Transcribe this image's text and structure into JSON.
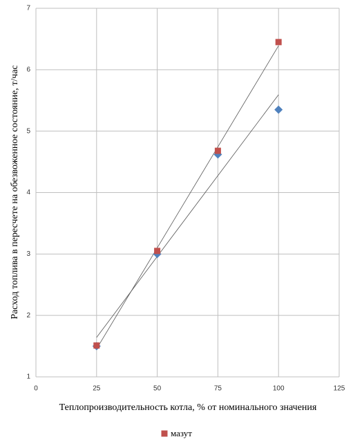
{
  "chart_data": {
    "type": "scatter",
    "xlabel": "Теплопроизводительность котла, % от номинального значения",
    "ylabel": "Расход топлива в пересчете  на обезвоженное состояние, т/час",
    "x": [
      25,
      50,
      75,
      100
    ],
    "series": [
      {
        "color": "#4f81bd",
        "marker": "diamond",
        "trendline": true,
        "values": [
          1.5,
          3.0,
          4.62,
          5.35
        ]
      },
      {
        "name": "мазут",
        "color": "#c0504d",
        "marker": "square",
        "trendline": true,
        "values": [
          1.51,
          3.05,
          4.68,
          6.45
        ]
      }
    ],
    "xlim": [
      0,
      125
    ],
    "xticks": [
      0,
      25,
      50,
      75,
      100,
      125
    ],
    "ylim": [
      1,
      7
    ],
    "yticks": [
      1,
      2,
      3,
      4,
      5,
      6,
      7
    ],
    "grid": true,
    "legend": "bottom"
  }
}
